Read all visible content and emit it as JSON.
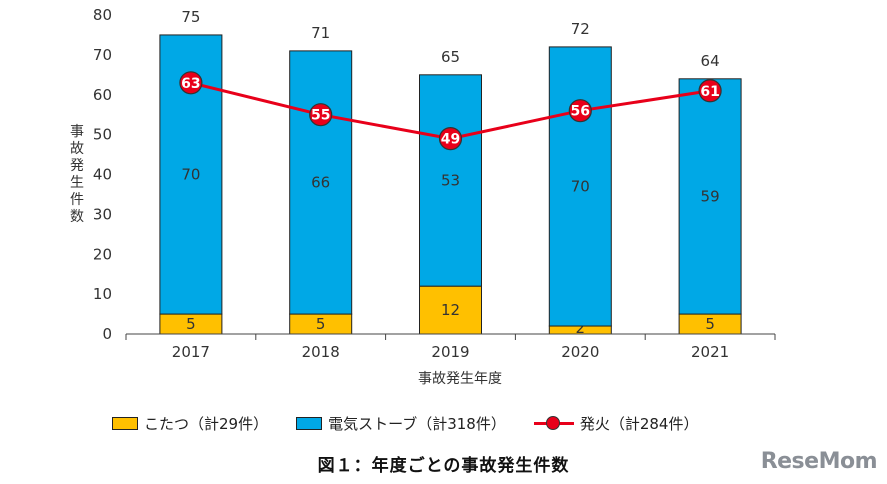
{
  "chart_data": {
    "type": "bar",
    "stacked": true,
    "categories": [
      "2017",
      "2018",
      "2019",
      "2020",
      "2021"
    ],
    "series": [
      {
        "name": "こたつ（計29件）",
        "color": "#ffc000",
        "values": [
          5,
          5,
          12,
          2,
          5
        ]
      },
      {
        "name": "電気ストーブ（計318件）",
        "color": "#00a8e6",
        "values": [
          70,
          66,
          53,
          70,
          59
        ]
      }
    ],
    "totals": [
      75,
      71,
      65,
      72,
      64
    ],
    "line_series": {
      "name": "発火（計284件）",
      "color": "#e8001a",
      "values": [
        63,
        55,
        49,
        56,
        61
      ]
    },
    "ylabel": "事故発生件数",
    "xlabel": "事故発生年度",
    "ylim": [
      0,
      80
    ],
    "yticks": [
      0,
      10,
      20,
      30,
      40,
      50,
      60,
      70,
      80
    ],
    "legend_position": "bottom"
  },
  "caption": "図１：年度ごとの事故発生件数",
  "watermark": "ReseMom"
}
